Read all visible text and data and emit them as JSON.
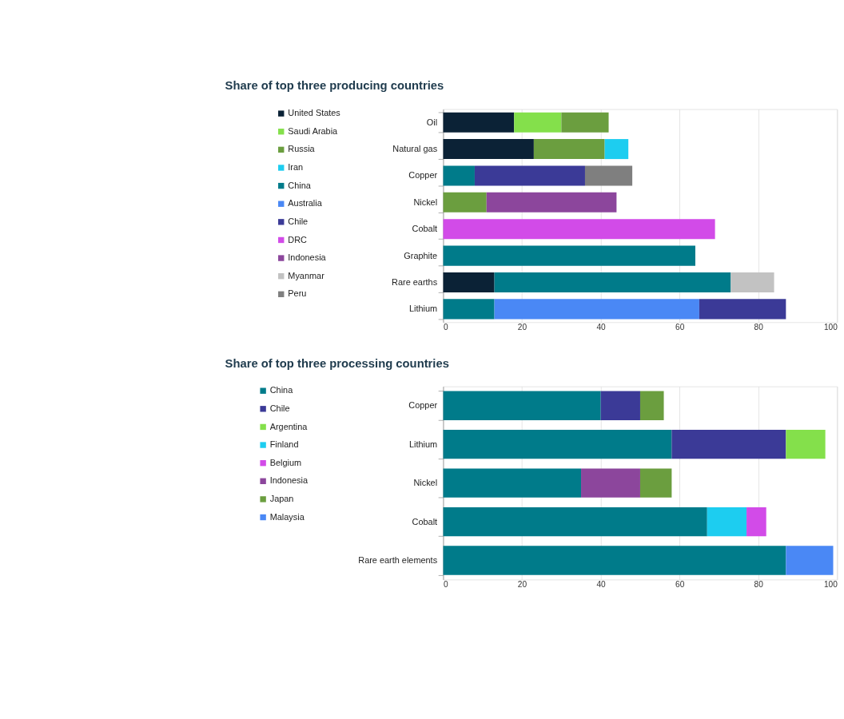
{
  "chart_data": [
    {
      "type": "bar",
      "title": "Share of top three producing countries",
      "orientation": "horizontal",
      "stacked": true,
      "categories": [
        "Oil",
        "Natural gas",
        "Copper",
        "Nickel",
        "Cobalt",
        "Graphite",
        "Rare earths",
        "Lithium"
      ],
      "series": [
        {
          "name": "United States",
          "color": "#0b2236",
          "values": [
            18,
            23,
            null,
            null,
            null,
            null,
            13,
            null
          ]
        },
        {
          "name": "Saudi Arabia",
          "color": "#84e04b",
          "values": [
            12,
            null,
            null,
            null,
            null,
            null,
            null,
            null
          ]
        },
        {
          "name": "Russia",
          "color": "#6b9e3f",
          "values": [
            12,
            18,
            null,
            11,
            null,
            null,
            null,
            null
          ]
        },
        {
          "name": "Iran",
          "color": "#1dcdf0",
          "values": [
            null,
            6,
            null,
            null,
            null,
            null,
            null,
            null
          ]
        },
        {
          "name": "China",
          "color": "#007b8a",
          "values": [
            null,
            null,
            8,
            null,
            null,
            64,
            60,
            13
          ]
        },
        {
          "name": "Australia",
          "color": "#4a88f5",
          "values": [
            null,
            null,
            null,
            null,
            null,
            null,
            null,
            52
          ]
        },
        {
          "name": "Chile",
          "color": "#3b3a97",
          "values": [
            null,
            null,
            28,
            null,
            null,
            null,
            null,
            22
          ]
        },
        {
          "name": "DRC",
          "color": "#d24be8",
          "values": [
            null,
            null,
            null,
            null,
            69,
            null,
            null,
            null
          ]
        },
        {
          "name": "Indonesia",
          "color": "#8c469c",
          "values": [
            null,
            null,
            null,
            33,
            null,
            null,
            null,
            null
          ]
        },
        {
          "name": "Myanmar",
          "color": "#c2c2c2",
          "values": [
            null,
            null,
            null,
            null,
            null,
            null,
            11,
            null
          ]
        },
        {
          "name": "Peru",
          "color": "#7f7f7f",
          "values": [
            null,
            null,
            12,
            null,
            null,
            null,
            null,
            null
          ]
        }
      ],
      "xlim": [
        0,
        100
      ],
      "xticks": [
        0,
        20,
        40,
        60,
        80,
        100
      ],
      "grid": "x",
      "legend": "left"
    },
    {
      "type": "bar",
      "title": "Share of top three processing countries",
      "orientation": "horizontal",
      "stacked": true,
      "categories": [
        "Copper",
        "Lithium",
        "Nickel",
        "Cobalt",
        "Rare earth elements"
      ],
      "series": [
        {
          "name": "China",
          "color": "#007b8a",
          "values": [
            40,
            58,
            35,
            67,
            87
          ]
        },
        {
          "name": "Chile",
          "color": "#3b3a97",
          "values": [
            10,
            29,
            null,
            null,
            null
          ]
        },
        {
          "name": "Argentina",
          "color": "#84e04b",
          "values": [
            null,
            10,
            null,
            null,
            null
          ]
        },
        {
          "name": "Finland",
          "color": "#1dcdf0",
          "values": [
            null,
            null,
            null,
            10,
            null
          ]
        },
        {
          "name": "Belgium",
          "color": "#d24be8",
          "values": [
            null,
            null,
            null,
            5,
            null
          ]
        },
        {
          "name": "Indonesia",
          "color": "#8c469c",
          "values": [
            null,
            null,
            15,
            null,
            null
          ]
        },
        {
          "name": "Japan",
          "color": "#6b9e3f",
          "values": [
            6,
            null,
            8,
            null,
            null
          ]
        },
        {
          "name": "Malaysia",
          "color": "#4a88f5",
          "values": [
            null,
            null,
            null,
            null,
            12
          ]
        }
      ],
      "xlim": [
        0,
        100
      ],
      "xticks": [
        0,
        20,
        40,
        60,
        80,
        100
      ],
      "grid": "x",
      "legend": "left"
    }
  ]
}
